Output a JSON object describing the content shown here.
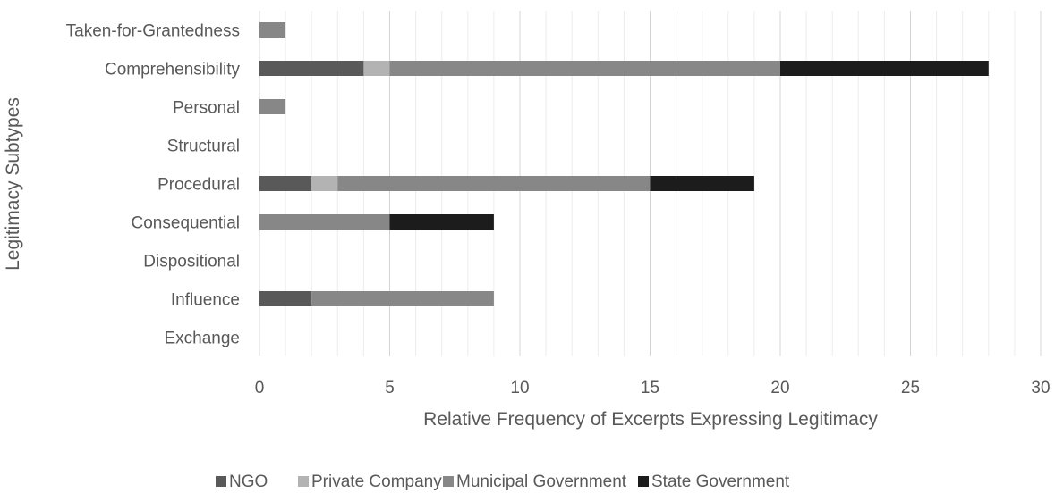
{
  "chart_data": {
    "type": "bar",
    "orientation": "horizontal",
    "stacked": true,
    "title": "",
    "xlabel": "Relative Frequency of Excerpts Expressing Legitimacy",
    "ylabel": "Legitimacy Subtypes",
    "xlim": [
      0,
      30
    ],
    "xticks": [
      0,
      5,
      10,
      15,
      20,
      25,
      30
    ],
    "grid": "vertical major and minor",
    "legend_position": "bottom",
    "categories": [
      "Exchange",
      "Influence",
      "Dispositional",
      "Consequential",
      "Procedural",
      "Structural",
      "Personal",
      "Comprehensibility",
      "Taken-for-Grantedness"
    ],
    "series": [
      {
        "name": "NGO",
        "color": "#595959",
        "values": [
          0,
          2,
          0,
          0,
          2,
          0,
          0,
          4,
          0
        ]
      },
      {
        "name": "Private Company",
        "color": "#b3b3b3",
        "values": [
          0,
          0,
          0,
          0,
          1,
          0,
          0,
          1,
          0
        ]
      },
      {
        "name": "Municipal Government",
        "color": "#878787",
        "values": [
          0,
          7,
          0,
          5,
          12,
          0,
          1,
          15,
          1
        ]
      },
      {
        "name": "State Government",
        "color": "#1c1c1c",
        "values": [
          0,
          0,
          0,
          4,
          4,
          0,
          0,
          8,
          0
        ]
      }
    ]
  }
}
